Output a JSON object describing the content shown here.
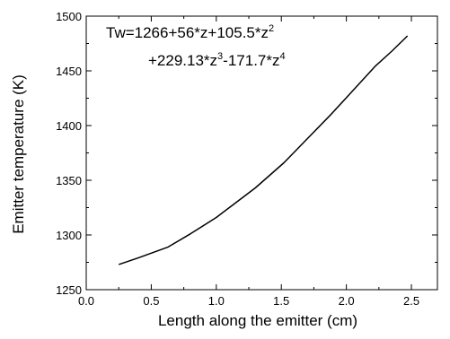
{
  "chart_data": {
    "type": "line",
    "title": "",
    "xlabel": "Length along the emitter (cm)",
    "ylabel": "Emitter temperature (K)",
    "xlim": [
      0.0,
      2.7
    ],
    "ylim": [
      1250,
      1500
    ],
    "xticks": [
      0.0,
      0.5,
      1.0,
      1.5,
      2.0,
      2.5
    ],
    "xtick_labels": [
      "0.0",
      "0.5",
      "1.0",
      "1.5",
      "2.0",
      "2.5"
    ],
    "yticks": [
      1250,
      1300,
      1350,
      1400,
      1450,
      1500
    ],
    "ytick_labels": [
      "1250",
      "1300",
      "1350",
      "1400",
      "1450",
      "1500"
    ],
    "grid": false,
    "series": [
      {
        "color": "#000000",
        "x": [
          0.25,
          0.4,
          0.63,
          0.8,
          1.0,
          1.1,
          1.3,
          1.52,
          1.7,
          1.88,
          2.05,
          2.22,
          2.35,
          2.47
        ],
        "y": [
          1273,
          1279,
          1289,
          1301,
          1316,
          1325,
          1343,
          1366,
          1388,
          1410,
          1432,
          1454,
          1468,
          1482
        ]
      }
    ],
    "annotation": {
      "line1": {
        "base": "Tw=1266+56*z+105.5*z",
        "sup": "2"
      },
      "line2": {
        "part1": "+229.13*z",
        "sup1": "3",
        "part2": "-171.7*z",
        "sup2": "4"
      }
    }
  }
}
